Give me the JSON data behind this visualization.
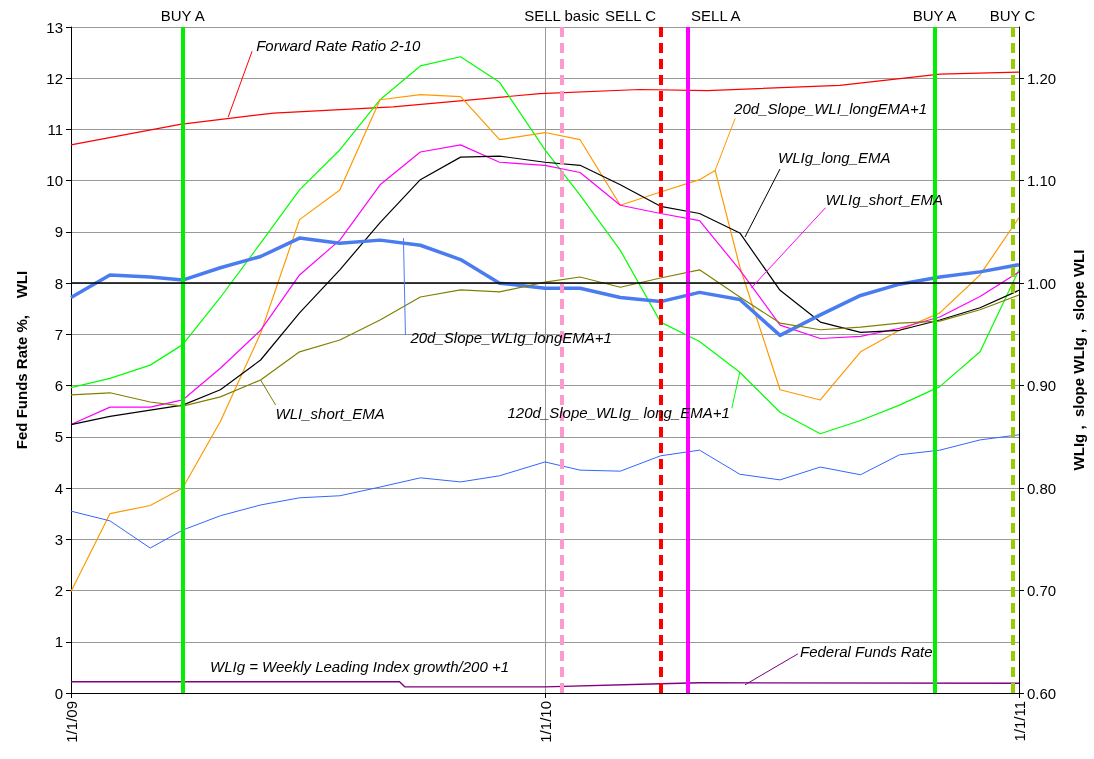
{
  "chart_data": {
    "type": "line",
    "ylabel": "Fed Funds Rate %,    WLI",
    "y2label": "WLIg ,  slope WLIg ,  slope WLI",
    "x": [
      "2009-01-01",
      "2009-01-31",
      "2009-03-03",
      "2009-03-28",
      "2009-04-26",
      "2009-05-27",
      "2009-06-26",
      "2009-07-27",
      "2009-08-27",
      "2009-09-27",
      "2009-10-28",
      "2009-11-27",
      "2010-01-01",
      "2010-01-28",
      "2010-02-28",
      "2010-03-31",
      "2010-04-30",
      "2010-05-31",
      "2010-07-01",
      "2010-08-01",
      "2010-09-01",
      "2010-10-01",
      "2010-11-01",
      "2010-12-02",
      "2011-01-01"
    ],
    "xlim": [
      "2009-01-01",
      "2011-01-01"
    ],
    "xticks": [
      {
        "value": "2009-01-01",
        "label": "1/1/09"
      },
      {
        "value": "2010-01-01",
        "label": "1/1/10"
      },
      {
        "value": "2011-01-01",
        "label": "1/1/11"
      }
    ],
    "ylim": [
      0,
      13
    ],
    "yticks": [
      0,
      1,
      2,
      3,
      4,
      5,
      6,
      7,
      8,
      9,
      10,
      11,
      12,
      13
    ],
    "y2lim": [
      0.6,
      1.25
    ],
    "y2ticks": [
      {
        "value": 0.6,
        "label": "0.60"
      },
      {
        "value": 0.7,
        "label": "0.70"
      },
      {
        "value": 0.8,
        "label": "0.80"
      },
      {
        "value": 0.9,
        "label": "0.90"
      },
      {
        "value": 1.0,
        "label": "1.00"
      },
      {
        "value": 1.1,
        "label": "1.10"
      },
      {
        "value": 1.2,
        "label": "1.20"
      }
    ],
    "grid": true,
    "series": [
      {
        "color": "#ff0000",
        "axis": "y2",
        "x": [
          "2009-01-01",
          "2009-03-26",
          "2009-06-06",
          "2009-09-06",
          "2009-12-28",
          "2010-03-15",
          "2010-05-06",
          "2010-08-16",
          "2010-11-01",
          "2011-01-01"
        ],
        "values": [
          1.135,
          1.155,
          1.166,
          1.172,
          1.185,
          1.189,
          1.188,
          1.193,
          1.204,
          1.206
        ]
      },
      {
        "color": "#00ff00",
        "axis": "y2",
        "values": [
          0.898,
          0.907,
          0.92,
          0.94,
          0.986,
          1.039,
          1.091,
          1.13,
          1.179,
          1.212,
          1.221,
          1.196,
          1.13,
          1.086,
          1.032,
          0.962,
          0.943,
          0.913,
          0.874,
          0.853,
          0.866,
          0.881,
          0.899,
          0.933,
          1.013
        ]
      },
      {
        "color": "#ff9900",
        "axis": "y2",
        "x": [
          "2009-01-01",
          "2009-01-31",
          "2009-03-03",
          "2009-03-28",
          "2009-04-26",
          "2009-05-27",
          "2009-06-26",
          "2009-07-27",
          "2009-08-27",
          "2009-09-27",
          "2009-10-28",
          "2009-11-27",
          "2010-01-01",
          "2010-01-28",
          "2010-02-28",
          "2010-03-31",
          "2010-04-30",
          "2010-05-12",
          "2010-05-31",
          "2010-07-01",
          "2010-08-01",
          "2010-09-01",
          "2010-10-01",
          "2010-11-01",
          "2010-12-02",
          "2011-01-01"
        ],
        "values": [
          0.699,
          0.775,
          0.783,
          0.8,
          0.865,
          0.951,
          1.062,
          1.091,
          1.179,
          1.184,
          1.182,
          1.14,
          1.147,
          1.14,
          1.076,
          1.089,
          1.101,
          1.11,
          1.016,
          0.896,
          0.886,
          0.933,
          0.954,
          0.971,
          1.008,
          1.064
        ]
      },
      {
        "color": "#ff00ff",
        "axis": "y2",
        "values": [
          0.862,
          0.879,
          0.879,
          0.886,
          0.917,
          0.954,
          1.008,
          1.042,
          1.096,
          1.128,
          1.135,
          1.118,
          1.115,
          1.108,
          1.076,
          1.068,
          1.061,
          1.013,
          0.959,
          0.946,
          0.948,
          0.956,
          0.967,
          0.987,
          1.011
        ]
      },
      {
        "color": "#000000",
        "axis": "y2",
        "values": [
          0.862,
          0.87,
          0.876,
          0.881,
          0.896,
          0.925,
          0.971,
          1.013,
          1.059,
          1.101,
          1.123,
          1.124,
          1.118,
          1.115,
          1.096,
          1.075,
          1.068,
          1.049,
          0.993,
          0.962,
          0.952,
          0.954,
          0.964,
          0.976,
          0.993
        ]
      },
      {
        "color": "#4a7cf0",
        "axis": "y2",
        "values": [
          0.986,
          1.008,
          1.006,
          1.003,
          1.015,
          1.026,
          1.044,
          1.039,
          1.042,
          1.037,
          1.023,
          1.0,
          0.995,
          0.995,
          0.986,
          0.982,
          0.991,
          0.984,
          0.949,
          0.969,
          0.988,
          0.999,
          1.006,
          1.011,
          1.018
        ]
      },
      {
        "color": "#808000",
        "values": [
          5.82,
          5.86,
          5.68,
          5.6,
          5.78,
          6.11,
          6.66,
          6.89,
          7.28,
          7.73,
          7.87,
          7.83,
          8.02,
          8.12,
          7.92,
          8.1,
          8.26,
          7.73,
          7.22,
          7.09,
          7.14,
          7.22,
          7.26,
          7.48,
          7.77
        ]
      },
      {
        "color": "#3366ff",
        "values": [
          3.55,
          3.36,
          2.83,
          3.18,
          3.46,
          3.67,
          3.81,
          3.85,
          4.02,
          4.2,
          4.12,
          4.24,
          4.51,
          4.35,
          4.33,
          4.63,
          4.74,
          4.27,
          4.16,
          4.41,
          4.26,
          4.65,
          4.74,
          4.94,
          5.04
        ]
      },
      {
        "color": "#800080",
        "x": [
          "2009-01-01",
          "2009-09-11",
          "2009-09-15",
          "2010-01-01",
          "2010-03-31",
          "2010-04-30",
          "2011-01-01"
        ],
        "values": [
          0.22,
          0.22,
          0.12,
          0.12,
          0.18,
          0.2,
          0.19
        ]
      }
    ],
    "ref_lines": [
      {
        "axis": "x",
        "value": "2009-03-28",
        "label": "BUY A",
        "color": "#00ee00",
        "line_style": "solid"
      },
      {
        "axis": "x",
        "value": "2010-01-14",
        "label": "SELL basic",
        "color": "#ff99cc",
        "line_style": "dashed"
      },
      {
        "axis": "x",
        "value": "2010-03-31",
        "label": "SELL C",
        "color": "#ff0000",
        "line_style": "dashed"
      },
      {
        "axis": "x",
        "value": "2010-04-21",
        "label": "SELL A",
        "color": "#ff00ff",
        "line_style": "solid"
      },
      {
        "axis": "x",
        "value": "2010-10-28",
        "label": "BUY A",
        "color": "#00ee00",
        "line_style": "solid"
      },
      {
        "axis": "x",
        "value": "2010-12-27",
        "label": "BUY C",
        "color": "#99cc00",
        "line_style": "dashed"
      },
      {
        "axis": "y2",
        "value": 1.0,
        "color": "#000000",
        "line_style": "solid"
      }
    ],
    "annotations": [
      {
        "text": "Forward Rate Ratio 2-10",
        "x": "2009-05-02",
        "y": 11.24
      },
      {
        "text": "20d_Slope_WLI_longEMA+1",
        "x": "2010-05-12",
        "y": 10.2
      },
      {
        "text": "WLIg_long_EMA",
        "x": "2010-06-04",
        "y": 8.9
      },
      {
        "text": "WLIg_short_EMA",
        "x": "2010-06-09",
        "y": 7.91
      },
      {
        "text": "20d_Slope_WLIg_longEMA+1",
        "x": "2009-09-14",
        "y": 8.88
      },
      {
        "text": "WLI_short_EMA",
        "x": "2009-05-27",
        "y": 6.11
      },
      {
        "text": "120d_Slope_WLIg_ long_EMA+1",
        "x": "2010-05-31",
        "y": 6.26
      },
      {
        "text": "Federal Funds Rate",
        "x": "2010-06-04",
        "y": 0.16
      },
      "WLIg = Weekly Leading Index growth/200 +1"
    ]
  }
}
